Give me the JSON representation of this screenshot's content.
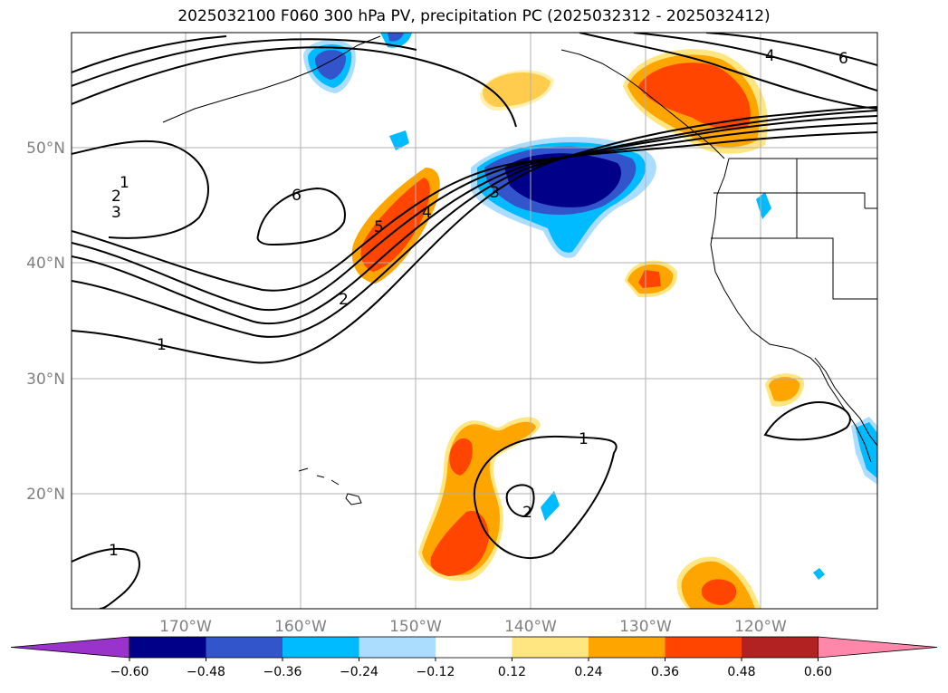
{
  "title": "2025032100 F060 300 hPa PV, precipitation PC (2025032312 - 2025032412)",
  "axes": {
    "lat_labels": [
      "50°N",
      "40°N",
      "30°N",
      "20°N"
    ],
    "lon_labels": [
      "170°W",
      "160°W",
      "150°W",
      "140°W",
      "130°W",
      "120°W"
    ]
  },
  "colorbar": {
    "ticks": [
      "−0.60",
      "−0.48",
      "−0.36",
      "−0.24",
      "−0.12",
      "0.12",
      "0.24",
      "0.36",
      "0.48",
      "0.60"
    ],
    "colors": [
      "#9933cc",
      "#000088",
      "#3355cc",
      "#00bbff",
      "#aaddff",
      "#ffffff",
      "#ffe680",
      "#ffa500",
      "#ff4500",
      "#b22222",
      "#ff88aa"
    ]
  },
  "contour_labels": [
    "1",
    "2",
    "3",
    "6",
    "5",
    "4",
    "2",
    "1",
    "3",
    "6",
    "4",
    "1",
    "2",
    "1"
  ],
  "colors": {
    "orange": "#ffa500",
    "red_orange": "#ff4500",
    "yellow": "#ffe680",
    "light_blue": "#00bbff",
    "pale_blue": "#aaddff",
    "mid_blue": "#3355cc",
    "navy": "#000088"
  }
}
